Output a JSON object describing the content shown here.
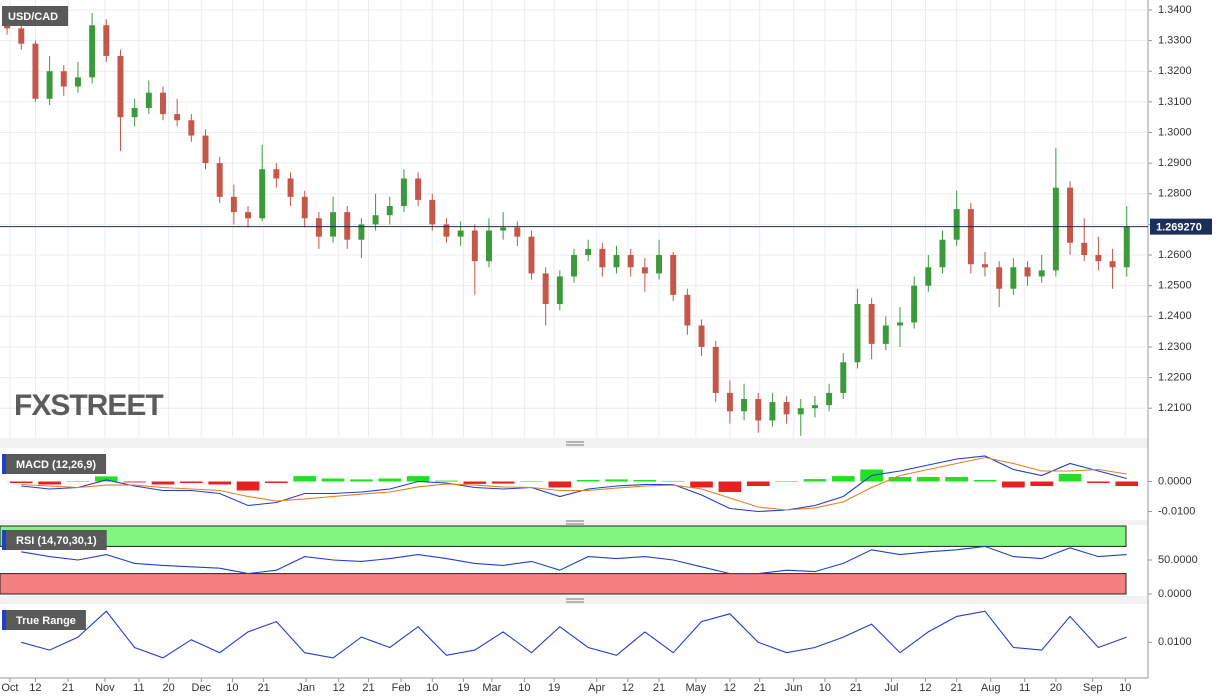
{
  "chart_data": [
    {
      "type": "candlestick",
      "title": "USD/CAD",
      "watermark": "FXSTREET",
      "up_color": "#3c9a3c",
      "down_color": "#c4564a",
      "grid": true,
      "x": [
        0,
        1,
        2,
        3,
        4,
        5,
        6,
        7,
        8,
        9,
        10,
        11,
        12,
        13,
        14,
        15,
        16,
        17,
        18,
        19,
        20,
        21,
        22,
        23,
        24,
        25,
        26,
        27,
        28,
        29,
        30,
        31,
        32,
        33,
        34,
        35,
        36,
        37,
        38,
        39,
        40,
        41,
        42,
        43,
        44,
        45,
        46,
        47,
        48,
        49,
        50,
        51,
        52,
        53,
        54,
        55,
        56,
        57,
        58,
        59,
        60,
        61,
        62,
        63,
        64,
        65,
        66,
        67,
        68,
        69,
        70,
        71,
        72,
        73,
        74,
        75,
        76,
        77,
        78,
        79
      ],
      "candles": [
        [
          1.338,
          1.34,
          1.332,
          1.334
        ],
        [
          1.334,
          1.336,
          1.327,
          1.329
        ],
        [
          1.329,
          1.33,
          1.31,
          1.311
        ],
        [
          1.311,
          1.325,
          1.309,
          1.32
        ],
        [
          1.32,
          1.322,
          1.312,
          1.315
        ],
        [
          1.315,
          1.323,
          1.313,
          1.318
        ],
        [
          1.318,
          1.339,
          1.316,
          1.335
        ],
        [
          1.335,
          1.337,
          1.323,
          1.325
        ],
        [
          1.325,
          1.327,
          1.294,
          1.305
        ],
        [
          1.305,
          1.311,
          1.302,
          1.308
        ],
        [
          1.308,
          1.317,
          1.306,
          1.313
        ],
        [
          1.313,
          1.315,
          1.304,
          1.306
        ],
        [
          1.306,
          1.311,
          1.302,
          1.304
        ],
        [
          1.304,
          1.306,
          1.297,
          1.299
        ],
        [
          1.299,
          1.301,
          1.288,
          1.29
        ],
        [
          1.29,
          1.292,
          1.277,
          1.279
        ],
        [
          1.279,
          1.283,
          1.27,
          1.274
        ],
        [
          1.274,
          1.276,
          1.269,
          1.272
        ],
        [
          1.272,
          1.296,
          1.271,
          1.288
        ],
        [
          1.288,
          1.29,
          1.282,
          1.285
        ],
        [
          1.285,
          1.287,
          1.276,
          1.279
        ],
        [
          1.279,
          1.281,
          1.269,
          1.272
        ],
        [
          1.272,
          1.274,
          1.262,
          1.266
        ],
        [
          1.266,
          1.279,
          1.264,
          1.274
        ],
        [
          1.274,
          1.276,
          1.262,
          1.265
        ],
        [
          1.265,
          1.272,
          1.259,
          1.27
        ],
        [
          1.27,
          1.28,
          1.268,
          1.273
        ],
        [
          1.273,
          1.279,
          1.27,
          1.276
        ],
        [
          1.276,
          1.288,
          1.274,
          1.285
        ],
        [
          1.285,
          1.287,
          1.276,
          1.278
        ],
        [
          1.278,
          1.28,
          1.268,
          1.27
        ],
        [
          1.27,
          1.272,
          1.264,
          1.266
        ],
        [
          1.266,
          1.271,
          1.263,
          1.268
        ],
        [
          1.268,
          1.27,
          1.247,
          1.258
        ],
        [
          1.258,
          1.272,
          1.256,
          1.268
        ],
        [
          1.268,
          1.274,
          1.265,
          1.269
        ],
        [
          1.269,
          1.271,
          1.263,
          1.266
        ],
        [
          1.266,
          1.268,
          1.252,
          1.254
        ],
        [
          1.254,
          1.256,
          1.237,
          1.244
        ],
        [
          1.244,
          1.255,
          1.242,
          1.253
        ],
        [
          1.253,
          1.262,
          1.251,
          1.26
        ],
        [
          1.26,
          1.265,
          1.258,
          1.262
        ],
        [
          1.262,
          1.264,
          1.253,
          1.256
        ],
        [
          1.256,
          1.263,
          1.254,
          1.26
        ],
        [
          1.26,
          1.262,
          1.253,
          1.256
        ],
        [
          1.256,
          1.259,
          1.248,
          1.254
        ],
        [
          1.254,
          1.265,
          1.252,
          1.26
        ],
        [
          1.26,
          1.261,
          1.245,
          1.247
        ],
        [
          1.247,
          1.249,
          1.234,
          1.237
        ],
        [
          1.237,
          1.239,
          1.227,
          1.23
        ],
        [
          1.23,
          1.232,
          1.212,
          1.215
        ],
        [
          1.215,
          1.219,
          1.205,
          1.209
        ],
        [
          1.209,
          1.218,
          1.206,
          1.213
        ],
        [
          1.213,
          1.215,
          1.202,
          1.206
        ],
        [
          1.206,
          1.215,
          1.204,
          1.212
        ],
        [
          1.212,
          1.214,
          1.205,
          1.208
        ],
        [
          1.208,
          1.213,
          1.201,
          1.21
        ],
        [
          1.21,
          1.214,
          1.207,
          1.211
        ],
        [
          1.211,
          1.218,
          1.209,
          1.215
        ],
        [
          1.215,
          1.228,
          1.213,
          1.225
        ],
        [
          1.225,
          1.249,
          1.223,
          1.244
        ],
        [
          1.244,
          1.246,
          1.226,
          1.231
        ],
        [
          1.231,
          1.24,
          1.229,
          1.237
        ],
        [
          1.237,
          1.243,
          1.23,
          1.238
        ],
        [
          1.238,
          1.253,
          1.236,
          1.25
        ],
        [
          1.25,
          1.26,
          1.248,
          1.256
        ],
        [
          1.256,
          1.268,
          1.254,
          1.265
        ],
        [
          1.265,
          1.281,
          1.263,
          1.275
        ],
        [
          1.275,
          1.277,
          1.254,
          1.257
        ],
        [
          1.257,
          1.261,
          1.253,
          1.256
        ],
        [
          1.256,
          1.258,
          1.243,
          1.249
        ],
        [
          1.249,
          1.259,
          1.247,
          1.256
        ],
        [
          1.256,
          1.258,
          1.25,
          1.253
        ],
        [
          1.253,
          1.26,
          1.251,
          1.255
        ],
        [
          1.255,
          1.295,
          1.253,
          1.282
        ],
        [
          1.282,
          1.284,
          1.26,
          1.264
        ],
        [
          1.264,
          1.272,
          1.258,
          1.26
        ],
        [
          1.26,
          1.266,
          1.255,
          1.258
        ],
        [
          1.258,
          1.262,
          1.249,
          1.256
        ],
        [
          1.256,
          1.276,
          1.253,
          1.2693
        ]
      ],
      "last_price": {
        "value": 1.26927,
        "label": "1.269270"
      },
      "ylim": [
        1.2006,
        1.3426
      ],
      "yticks": [
        {
          "value": 1.34,
          "label": "1.3400"
        },
        {
          "value": 1.33,
          "label": "1.3300"
        },
        {
          "value": 1.32,
          "label": "1.3200"
        },
        {
          "value": 1.31,
          "label": "1.3100"
        },
        {
          "value": 1.3,
          "label": "1.3000"
        },
        {
          "value": 1.29,
          "label": "1.2900"
        },
        {
          "value": 1.28,
          "label": "1.2800"
        },
        {
          "value": 1.27,
          "label": "1.2700"
        },
        {
          "value": 1.26,
          "label": "1.2600"
        },
        {
          "value": 1.25,
          "label": "1.2500"
        },
        {
          "value": 1.24,
          "label": "1.2400"
        },
        {
          "value": 1.23,
          "label": "1.2300"
        },
        {
          "value": 1.22,
          "label": "1.2200"
        },
        {
          "value": 1.21,
          "label": "1.2100"
        }
      ],
      "xlim": [
        -0.5,
        80.5
      ],
      "xticks": [
        {
          "value": 0.2,
          "label": "Oct"
        },
        {
          "value": 2.0,
          "label": "12"
        },
        {
          "value": 4.3,
          "label": "21"
        },
        {
          "value": 6.9,
          "label": "Nov"
        },
        {
          "value": 9.3,
          "label": "11"
        },
        {
          "value": 11.4,
          "label": "20"
        },
        {
          "value": 13.7,
          "label": "Dec"
        },
        {
          "value": 15.9,
          "label": "10"
        },
        {
          "value": 18.1,
          "label": "21"
        },
        {
          "value": 21.1,
          "label": "Jan"
        },
        {
          "value": 23.4,
          "label": "12"
        },
        {
          "value": 25.5,
          "label": "21"
        },
        {
          "value": 27.8,
          "label": "Feb"
        },
        {
          "value": 30.0,
          "label": "10"
        },
        {
          "value": 32.2,
          "label": "19"
        },
        {
          "value": 34.2,
          "label": "Mar"
        },
        {
          "value": 36.5,
          "label": "10"
        },
        {
          "value": 38.6,
          "label": "19"
        },
        {
          "value": 41.6,
          "label": "Apr"
        },
        {
          "value": 43.8,
          "label": "12"
        },
        {
          "value": 46.0,
          "label": "21"
        },
        {
          "value": 48.6,
          "label": "May"
        },
        {
          "value": 51.0,
          "label": "12"
        },
        {
          "value": 53.1,
          "label": "21"
        },
        {
          "value": 55.5,
          "label": "Jun"
        },
        {
          "value": 57.7,
          "label": "10"
        },
        {
          "value": 59.9,
          "label": "21"
        },
        {
          "value": 62.4,
          "label": "Jul"
        },
        {
          "value": 64.8,
          "label": "12"
        },
        {
          "value": 67.0,
          "label": "21"
        },
        {
          "value": 69.4,
          "label": "Aug"
        },
        {
          "value": 71.8,
          "label": "11"
        },
        {
          "value": 74.0,
          "label": "20"
        },
        {
          "value": 76.6,
          "label": "Sep"
        },
        {
          "value": 78.9,
          "label": "10"
        }
      ]
    },
    {
      "type": "macd",
      "title": "MACD (12,26,9)",
      "x": [
        1,
        3,
        5,
        7,
        9,
        11,
        13,
        15,
        17,
        19,
        21,
        23,
        25,
        27,
        29,
        31,
        33,
        35,
        37,
        39,
        41,
        43,
        45,
        47,
        49,
        51,
        53,
        55,
        57,
        59,
        61,
        63,
        65,
        67,
        69,
        71,
        73,
        75,
        77,
        79
      ],
      "series": [
        {
          "color": "#1f3fd0",
          "values": [
            -0.0015,
            -0.0025,
            -0.002,
            0.0005,
            -0.0015,
            -0.003,
            -0.003,
            -0.004,
            -0.008,
            -0.007,
            -0.004,
            -0.004,
            -0.0035,
            -0.0025,
            0.0,
            -0.0005,
            -0.002,
            -0.0025,
            -0.002,
            -0.005,
            -0.0025,
            -0.0015,
            -0.001,
            -0.001,
            -0.0045,
            -0.009,
            -0.01,
            -0.0095,
            -0.008,
            -0.005,
            0.002,
            0.0035,
            0.0055,
            0.0075,
            0.0085,
            0.004,
            0.002,
            0.006,
            0.0035,
            0.001
          ]
        },
        {
          "color": "#e5801f",
          "values": [
            -0.001,
            -0.0015,
            -0.002,
            -0.0012,
            -0.0012,
            -0.002,
            -0.0025,
            -0.003,
            -0.005,
            -0.0065,
            -0.0058,
            -0.005,
            -0.0042,
            -0.0035,
            -0.0018,
            -0.0008,
            -0.0012,
            -0.0018,
            -0.002,
            -0.003,
            -0.003,
            -0.0022,
            -0.0015,
            -0.0012,
            -0.0025,
            -0.0055,
            -0.0085,
            -0.0095,
            -0.0088,
            -0.0068,
            -0.002,
            0.002,
            0.004,
            0.006,
            0.008,
            0.006,
            0.0035,
            0.0035,
            0.004,
            0.0025
          ]
        }
      ],
      "histogram": {
        "up_color": "#22e022",
        "down_color": "#e82020",
        "values": [
          -0.0005,
          -0.001,
          0.0,
          0.0017,
          -0.0003,
          -0.001,
          -0.0005,
          -0.001,
          -0.003,
          -0.0005,
          0.0018,
          0.001,
          0.0007,
          0.001,
          0.0018,
          0.0003,
          -0.0008,
          -0.0007,
          0.0,
          -0.002,
          0.0005,
          0.0007,
          0.0005,
          0.0002,
          -0.002,
          -0.0035,
          -0.0015,
          0.0,
          0.0008,
          0.0018,
          0.004,
          0.0015,
          0.0015,
          0.0015,
          0.0005,
          -0.002,
          -0.0015,
          0.0025,
          -0.0005,
          -0.0015
        ]
      },
      "ylim": [
        -0.0125,
        0.0105
      ],
      "yticks": [
        {
          "value": 0,
          "label": "0.0000"
        },
        {
          "value": -0.01,
          "label": "-0.0100"
        }
      ]
    },
    {
      "type": "rsi",
      "title": "RSI (14,70,30,1)",
      "color": "#1f3fd0",
      "overbought": 70,
      "oversold": 30,
      "overbought_color": "#80f580",
      "oversold_color": "#f58080",
      "x": [
        1,
        3,
        5,
        7,
        9,
        11,
        13,
        15,
        17,
        19,
        21,
        23,
        25,
        27,
        29,
        31,
        33,
        35,
        37,
        39,
        41,
        43,
        45,
        47,
        49,
        51,
        53,
        55,
        57,
        59,
        61,
        63,
        65,
        67,
        69,
        71,
        73,
        75,
        77,
        79
      ],
      "values": [
        62,
        55,
        50,
        58,
        45,
        42,
        40,
        38,
        30,
        35,
        55,
        50,
        48,
        52,
        58,
        52,
        45,
        42,
        48,
        35,
        55,
        52,
        55,
        50,
        40,
        30,
        30,
        35,
        33,
        45,
        65,
        58,
        62,
        65,
        70,
        55,
        52,
        68,
        55,
        58
      ],
      "ylim": [
        0,
        100
      ],
      "yticks": [
        {
          "value": 50,
          "label": "50.0000"
        },
        {
          "value": 0,
          "label": "0.0000"
        }
      ]
    },
    {
      "type": "line",
      "title": "True Range",
      "color": "#1f3fd0",
      "x": [
        1,
        3,
        5,
        7,
        9,
        11,
        13,
        15,
        17,
        19,
        21,
        23,
        25,
        27,
        29,
        31,
        33,
        35,
        37,
        39,
        41,
        43,
        45,
        47,
        49,
        51,
        53,
        55,
        57,
        59,
        61,
        63,
        65,
        67,
        69,
        71,
        73,
        75,
        77,
        79
      ],
      "values": [
        0.01,
        0.0085,
        0.011,
        0.016,
        0.009,
        0.007,
        0.0105,
        0.008,
        0.012,
        0.014,
        0.008,
        0.007,
        0.011,
        0.009,
        0.013,
        0.0075,
        0.0085,
        0.012,
        0.008,
        0.013,
        0.009,
        0.0075,
        0.012,
        0.008,
        0.014,
        0.0155,
        0.01,
        0.008,
        0.009,
        0.011,
        0.0135,
        0.008,
        0.012,
        0.015,
        0.016,
        0.009,
        0.0085,
        0.015,
        0.009,
        0.011
      ],
      "ylim": [
        0.0035,
        0.017
      ],
      "yticks": [
        {
          "value": 0.01,
          "label": "0.0100"
        }
      ]
    }
  ]
}
